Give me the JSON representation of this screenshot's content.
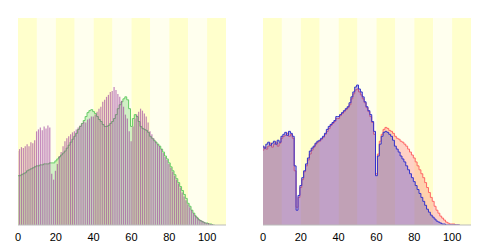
{
  "chart_data": [
    {
      "type": "bar",
      "x": [
        0,
        1,
        2,
        3,
        4,
        5,
        6,
        7,
        8,
        9,
        10,
        11,
        12,
        13,
        14,
        15,
        16,
        17,
        18,
        19,
        20,
        21,
        22,
        23,
        24,
        25,
        26,
        27,
        28,
        29,
        30,
        31,
        32,
        33,
        34,
        35,
        36,
        37,
        38,
        39,
        40,
        41,
        42,
        43,
        44,
        45,
        46,
        47,
        48,
        49,
        50,
        51,
        52,
        53,
        54,
        55,
        56,
        57,
        58,
        59,
        60,
        61,
        62,
        63,
        64,
        65,
        66,
        67,
        68,
        69,
        70,
        71,
        72,
        73,
        74,
        75,
        76,
        77,
        78,
        79,
        80,
        81,
        82,
        83,
        84,
        85,
        86,
        87,
        88,
        89,
        90,
        91,
        92,
        93,
        94,
        95,
        96,
        97,
        98,
        99,
        100,
        101,
        102,
        103,
        104
      ],
      "xlim": [
        0,
        110
      ],
      "xticks": [
        0,
        20,
        40,
        60,
        80,
        100
      ],
      "ylim": [
        0,
        210
      ],
      "tick_labels": "x",
      "series": [
        {
          "type": "area",
          "color": "#66cc66",
          "values": [
            50,
            50,
            51,
            52,
            53,
            55,
            56,
            57,
            58,
            59,
            60,
            60,
            61,
            61,
            62,
            62,
            62,
            63,
            63,
            63,
            65,
            67,
            69,
            71,
            73,
            75,
            78,
            81,
            84,
            87,
            90,
            93,
            97,
            100,
            103,
            106,
            110,
            114,
            116,
            117,
            115,
            113,
            110,
            107,
            105,
            102,
            100,
            100,
            101,
            103,
            105,
            108,
            112,
            118,
            122,
            125,
            128,
            130,
            127,
            118,
            100,
            108,
            112,
            110,
            105,
            100,
            98,
            97,
            96,
            94,
            90,
            88,
            86,
            84,
            82,
            80,
            77,
            74,
            70,
            67,
            63,
            59,
            55,
            51,
            47,
            43,
            39,
            35,
            31,
            27,
            22,
            19,
            15,
            12,
            9,
            7,
            5,
            4,
            3,
            2,
            2,
            1,
            1,
            0,
            0
          ]
        },
        {
          "type": "bar",
          "color": "#993399",
          "values": [
            75,
            77,
            79,
            78,
            80,
            82,
            80,
            84,
            83,
            86,
            95,
            97,
            99,
            96,
            100,
            98,
            101,
            99,
            52,
            46,
            55,
            62,
            70,
            74,
            80,
            85,
            88,
            90,
            92,
            94,
            95,
            97,
            99,
            101,
            103,
            105,
            104,
            107,
            108,
            110,
            110,
            112,
            115,
            118,
            120,
            125,
            127,
            130,
            132,
            135,
            136,
            140,
            137,
            133,
            130,
            126,
            120,
            112,
            108,
            95,
            85,
            100,
            108,
            112,
            115,
            118,
            116,
            113,
            110,
            104,
            95,
            92,
            88,
            85,
            82,
            80,
            77,
            73,
            69,
            66,
            62,
            58,
            54,
            50,
            46,
            42,
            38,
            33,
            29,
            25,
            21,
            18,
            15,
            12,
            10,
            8,
            6,
            5,
            4,
            3,
            2,
            2,
            1,
            1,
            0
          ]
        }
      ]
    },
    {
      "type": "bar",
      "x": [
        0,
        1,
        2,
        3,
        4,
        5,
        6,
        7,
        8,
        9,
        10,
        11,
        12,
        13,
        14,
        15,
        16,
        17,
        18,
        19,
        20,
        21,
        22,
        23,
        24,
        25,
        26,
        27,
        28,
        29,
        30,
        31,
        32,
        33,
        34,
        35,
        36,
        37,
        38,
        39,
        40,
        41,
        42,
        43,
        44,
        45,
        46,
        47,
        48,
        49,
        50,
        51,
        52,
        53,
        54,
        55,
        56,
        57,
        58,
        59,
        60,
        61,
        62,
        63,
        64,
        65,
        66,
        67,
        68,
        69,
        70,
        71,
        72,
        73,
        74,
        75,
        76,
        77,
        78,
        79,
        80,
        81,
        82,
        83,
        84,
        85,
        86,
        87,
        88,
        89,
        90,
        91,
        92,
        93,
        94,
        95,
        96,
        97,
        98,
        99,
        100,
        101,
        102,
        103,
        104
      ],
      "xlim": [
        0,
        110
      ],
      "xticks": [
        0,
        20,
        40,
        60,
        80,
        100
      ],
      "ylim": [
        0,
        210
      ],
      "tick_labels": "x",
      "series": [
        {
          "type": "area",
          "color": "#ff6666",
          "values": [
            76,
            79,
            77,
            80,
            83,
            79,
            82,
            84,
            80,
            83,
            88,
            90,
            91,
            93,
            90,
            92,
            88,
            55,
            18,
            28,
            38,
            46,
            54,
            60,
            66,
            72,
            76,
            79,
            82,
            84,
            85,
            87,
            89,
            92,
            95,
            98,
            101,
            103,
            105,
            108,
            108,
            111,
            113,
            115,
            117,
            119,
            122,
            128,
            133,
            137,
            138,
            135,
            132,
            128,
            124,
            119,
            115,
            110,
            104,
            92,
            52,
            72,
            85,
            92,
            97,
            99,
            98,
            96,
            95,
            93,
            90,
            88,
            87,
            85,
            84,
            82,
            80,
            77,
            74,
            71,
            68,
            64,
            60,
            56,
            52,
            48,
            43,
            38,
            33,
            28,
            24,
            19,
            15,
            12,
            9,
            7,
            5,
            3,
            2,
            1,
            1,
            1,
            0,
            0,
            0
          ]
        },
        {
          "type": "area",
          "color": "#3333cc",
          "values": [
            80,
            78,
            82,
            84,
            81,
            83,
            85,
            82,
            86,
            84,
            90,
            92,
            94,
            91,
            95,
            93,
            90,
            60,
            15,
            30,
            40,
            48,
            55,
            62,
            68,
            75,
            78,
            80,
            83,
            85,
            86,
            88,
            90,
            93,
            97,
            100,
            102,
            104,
            106,
            110,
            110,
            112,
            114,
            116,
            118,
            120,
            124,
            130,
            135,
            140,
            142,
            138,
            135,
            130,
            125,
            120,
            116,
            112,
            105,
            95,
            50,
            70,
            82,
            90,
            94,
            95,
            94,
            92,
            90,
            86,
            80,
            77,
            74,
            70,
            67,
            64,
            60,
            56,
            52,
            48,
            44,
            40,
            36,
            32,
            28,
            24,
            20,
            16,
            13,
            10,
            8,
            6,
            4,
            3,
            2,
            1,
            1,
            0,
            0,
            0,
            0,
            0,
            0,
            0,
            0
          ]
        }
      ]
    }
  ]
}
